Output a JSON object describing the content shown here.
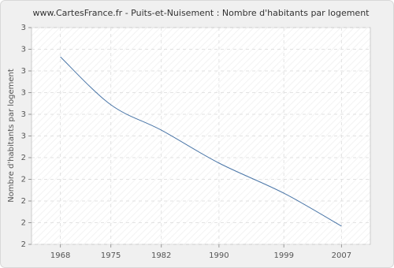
{
  "chart_data": {
    "type": "line",
    "title": "www.CartesFrance.fr - Puits-et-Nuisement : Nombre d'habitants par logement",
    "y_label": "Nombre d'habitants par logement",
    "x": [
      1968,
      1975,
      1982,
      1990,
      1999,
      2007
    ],
    "series": [
      {
        "name": "Nombre d'habitants par logement",
        "color": "#4a76a8",
        "values": [
          2.865,
          2.644,
          2.527,
          2.375,
          2.236,
          2.084
        ]
      }
    ],
    "xlim": [
      1964,
      2011
    ],
    "xticks": [
      1968,
      1975,
      1982,
      1990,
      1999,
      2007
    ],
    "ylim": [
      2,
      3
    ],
    "yticks": [
      {
        "value": 2,
        "label": "2"
      },
      {
        "value": 2.1,
        "label": "2"
      },
      {
        "value": 2.2,
        "label": "2"
      },
      {
        "value": 2.3,
        "label": "2"
      },
      {
        "value": 2.4,
        "label": "2"
      },
      {
        "value": 2.5,
        "label": "3"
      },
      {
        "value": 2.6,
        "label": "3"
      },
      {
        "value": 2.7,
        "label": "3"
      },
      {
        "value": 2.8,
        "label": "3"
      },
      {
        "value": 2.9,
        "label": "3"
      },
      {
        "value": 3,
        "label": "3"
      }
    ],
    "grid": true
  }
}
